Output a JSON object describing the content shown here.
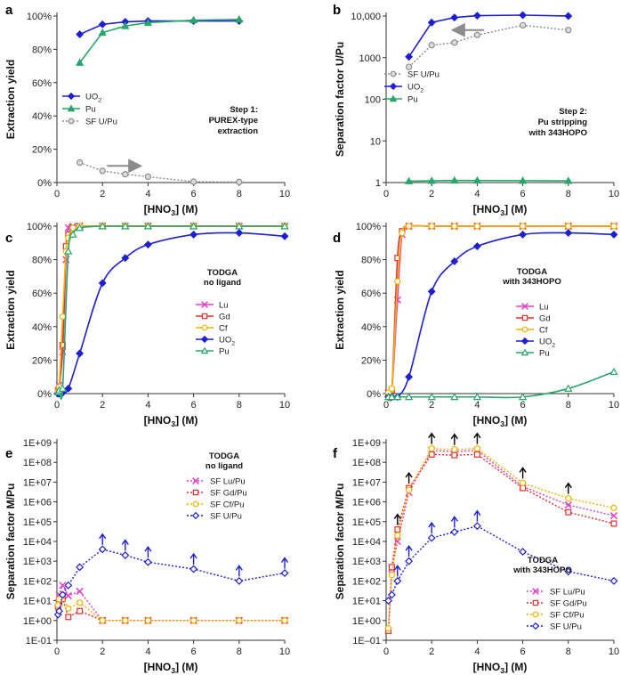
{
  "chart_data": [
    {
      "id": "a",
      "type": "line",
      "panel_label": "a",
      "yscale": "linear",
      "xlabel": [
        "[HNO",
        "3",
        "] (M)"
      ],
      "ylabel": "Extraction yield",
      "xlim": [
        0,
        10
      ],
      "xticks": [
        0,
        2,
        4,
        6,
        8,
        10
      ],
      "ylim": [
        0,
        100
      ],
      "yticks": [
        0,
        20,
        40,
        60,
        80,
        100
      ],
      "ytick_labels": [
        "0%",
        "20%",
        "40%",
        "60%",
        "80%",
        "100%"
      ],
      "legend_pos": "bottom-left",
      "annotation": [
        "Step 1:",
        "PUREX-type",
        "extraction"
      ],
      "arrow": {
        "from": [
          2.2,
          10
        ],
        "to": [
          3.6,
          10
        ],
        "label": "gray arrow"
      },
      "series": [
        {
          "name": [
            "UO",
            "2"
          ],
          "color": "#1f1fd1",
          "marker": "diamond",
          "style": "solid",
          "mfill": "color",
          "x": [
            1,
            2,
            3,
            4,
            6,
            8
          ],
          "y": [
            89,
            95,
            96.5,
            97,
            97,
            97
          ]
        },
        {
          "name": [
            "Pu"
          ],
          "color": "#2aa56a",
          "marker": "triangle",
          "style": "solid",
          "mfill": "color",
          "x": [
            1,
            2,
            3,
            4,
            6,
            8
          ],
          "y": [
            72,
            90,
            94,
            96,
            97.5,
            98
          ]
        },
        {
          "name": [
            "SF U/Pu"
          ],
          "color": "#8c8c8c",
          "marker": "circle",
          "style": "dotted",
          "mfill": "#dddddd",
          "x": [
            1,
            2,
            3,
            4,
            6,
            8
          ],
          "y": [
            12,
            7,
            5,
            3.5,
            0.5,
            0.3
          ]
        }
      ]
    },
    {
      "id": "b",
      "type": "line",
      "panel_label": "b",
      "yscale": "log",
      "xlabel": [
        "[HNO",
        "3",
        "] (M)"
      ],
      "ylabel": "Separation factor U/Pu",
      "xlim": [
        0,
        10
      ],
      "xticks": [
        0,
        2,
        4,
        6,
        8,
        10
      ],
      "ylim": [
        1,
        10000
      ],
      "yticks": [
        1,
        10,
        100,
        1000,
        10000
      ],
      "ytick_labels": [
        "1",
        "10",
        "100",
        "1000",
        "10,000"
      ],
      "legend_pos": "middle-left",
      "annotation": [
        "Step 2:",
        "Pu stripping",
        "with 343HOPO"
      ],
      "arrow": {
        "from": [
          4.3,
          4600
        ],
        "to": [
          3.0,
          4600
        ],
        "label": "gray arrow"
      },
      "series": [
        {
          "name": [
            "SF U/Pu"
          ],
          "color": "#8c8c8c",
          "marker": "circle",
          "style": "dotted",
          "mfill": "#dddddd",
          "x": [
            1,
            2,
            3,
            4,
            6,
            8
          ],
          "y": [
            600,
            2000,
            2300,
            3500,
            6000,
            4600
          ]
        },
        {
          "name": [
            "UO",
            "2"
          ],
          "color": "#1f1fd1",
          "marker": "diamond",
          "style": "solid",
          "mfill": "color",
          "x": [
            1,
            2,
            3,
            4,
            6,
            8
          ],
          "y": [
            1050,
            7000,
            9200,
            10200,
            10500,
            10000
          ]
        },
        {
          "name": [
            "Pu"
          ],
          "color": "#2aa56a",
          "marker": "triangle",
          "style": "solid",
          "mfill": "color",
          "x": [
            1,
            2,
            3,
            4,
            6,
            8
          ],
          "y": [
            1.08,
            1.1,
            1.12,
            1.12,
            1.11,
            1.1
          ]
        }
      ]
    },
    {
      "id": "c",
      "type": "line",
      "panel_label": "c",
      "yscale": "linear",
      "xlabel": [
        "[HNO",
        "3",
        "] (M)"
      ],
      "ylabel": "Extraction yield",
      "xlim": [
        0,
        10
      ],
      "xticks": [
        0,
        2,
        4,
        6,
        8,
        10
      ],
      "ylim": [
        0,
        100
      ],
      "yticks": [
        0,
        20,
        40,
        60,
        80,
        100
      ],
      "ytick_labels": [
        "0%",
        "20%",
        "40%",
        "60%",
        "80%",
        "100%"
      ],
      "legend_pos": "middle-right",
      "legend_title": [
        "TODGA",
        "no ligand"
      ],
      "series": [
        {
          "name": [
            "Lu"
          ],
          "color": "#e040c8",
          "marker": "x",
          "style": "solid",
          "mfill": "none",
          "x": [
            0.05,
            0.1,
            0.25,
            0.4,
            0.5,
            0.7,
            1,
            2,
            3,
            4,
            6,
            8,
            10
          ],
          "y": [
            2,
            5,
            25,
            80,
            99,
            100,
            100,
            100,
            100,
            100,
            100,
            100,
            100
          ]
        },
        {
          "name": [
            "Gd"
          ],
          "color": "#e03030",
          "marker": "square",
          "style": "solid",
          "mfill": "none",
          "x": [
            0.05,
            0.1,
            0.25,
            0.4,
            0.5,
            0.7,
            1,
            2,
            3,
            4,
            6,
            8,
            10
          ],
          "y": [
            1,
            3,
            29,
            88,
            95,
            99,
            100,
            100,
            100,
            100,
            100,
            100,
            100
          ]
        },
        {
          "name": [
            "Cf"
          ],
          "color": "#f0b400",
          "marker": "circle",
          "style": "solid",
          "mfill": "none",
          "x": [
            0.05,
            0.1,
            0.25,
            0.4,
            0.5,
            0.7,
            1,
            2,
            3,
            4,
            6,
            8,
            10
          ],
          "y": [
            1,
            4,
            46,
            85,
            93,
            99,
            100,
            100,
            100,
            100,
            100,
            100,
            100
          ]
        },
        {
          "name": [
            "UO",
            "2"
          ],
          "color": "#1f1fd1",
          "marker": "diamond",
          "style": "solid",
          "mfill": "color",
          "x": [
            0.05,
            0.1,
            0.25,
            0.5,
            1,
            2,
            3,
            4,
            6,
            8,
            10
          ],
          "y": [
            0,
            0,
            0.5,
            3,
            24,
            66,
            81,
            89,
            95,
            96,
            94
          ]
        },
        {
          "name": [
            "Pu"
          ],
          "color": "#2aa56a",
          "marker": "triangle",
          "style": "solid",
          "mfill": "none",
          "x": [
            0.05,
            0.1,
            0.25,
            0.5,
            0.7,
            1,
            2,
            3,
            4,
            6,
            8,
            10
          ],
          "y": [
            1,
            2,
            3,
            85,
            95,
            99,
            100,
            100,
            100,
            100,
            100,
            100
          ]
        }
      ]
    },
    {
      "id": "d",
      "type": "line",
      "panel_label": "d",
      "yscale": "linear",
      "xlabel": [
        "[HNO",
        "3",
        "] (M)"
      ],
      "ylabel": "Extraction yield",
      "xlim": [
        0,
        10
      ],
      "xticks": [
        0,
        2,
        4,
        6,
        8,
        10
      ],
      "ylim": [
        0,
        100
      ],
      "yticks": [
        0,
        20,
        40,
        60,
        80,
        100
      ],
      "ytick_labels": [
        "0%",
        "20%",
        "40%",
        "60%",
        "80%",
        "100%"
      ],
      "legend_pos": "middle-right",
      "legend_title": [
        "TODGA",
        "with 343HOPO"
      ],
      "series": [
        {
          "name": [
            "Lu"
          ],
          "color": "#e040c8",
          "marker": "x",
          "style": "solid",
          "mfill": "none",
          "x": [
            0.1,
            0.25,
            0.5,
            0.7,
            1,
            2,
            3,
            4,
            6,
            8,
            10
          ],
          "y": [
            0.5,
            2,
            56,
            95,
            100,
            100,
            100,
            100,
            100,
            100,
            100
          ]
        },
        {
          "name": [
            "Gd"
          ],
          "color": "#e03030",
          "marker": "square",
          "style": "solid",
          "mfill": "none",
          "x": [
            0.1,
            0.25,
            0.5,
            0.7,
            1,
            2,
            3,
            4,
            6,
            8,
            10
          ],
          "y": [
            0.5,
            2,
            81,
            97,
            100,
            100,
            100,
            100,
            100,
            100,
            100
          ]
        },
        {
          "name": [
            "Cf"
          ],
          "color": "#f0b400",
          "marker": "circle",
          "style": "solid",
          "mfill": "none",
          "x": [
            0.1,
            0.25,
            0.5,
            0.7,
            1,
            2,
            3,
            4,
            6,
            8,
            10
          ],
          "y": [
            0.5,
            3,
            67,
            96,
            100,
            100,
            100,
            100,
            100,
            100,
            100
          ]
        },
        {
          "name": [
            "UO",
            "2"
          ],
          "color": "#1f1fd1",
          "marker": "diamond",
          "style": "solid",
          "mfill": "color",
          "x": [
            0.1,
            0.25,
            0.5,
            1,
            2,
            3,
            4,
            6,
            8,
            10
          ],
          "y": [
            -2,
            -2,
            -2,
            10,
            61,
            79,
            88,
            95,
            96,
            95
          ]
        },
        {
          "name": [
            "Pu"
          ],
          "color": "#2aa56a",
          "marker": "triangle",
          "style": "solid",
          "mfill": "none",
          "x": [
            0.1,
            0.25,
            0.5,
            1,
            2,
            3,
            4,
            6,
            8,
            10
          ],
          "y": [
            -2,
            -2,
            -2,
            -2,
            -2,
            -2,
            -2,
            -2,
            3,
            13
          ]
        }
      ]
    },
    {
      "id": "e",
      "type": "line",
      "panel_label": "e",
      "yscale": "log",
      "xlabel": [
        "[HNO",
        "3",
        "] (M)"
      ],
      "ylabel": "Separation factor M/Pu",
      "xlim": [
        0,
        10
      ],
      "xticks": [
        0,
        2,
        4,
        6,
        8,
        10
      ],
      "ylim": [
        0.1,
        1000000000
      ],
      "yticks": [
        0.1,
        1,
        10,
        100,
        1000,
        10000,
        100000,
        1000000,
        10000000,
        100000000,
        1000000000
      ],
      "ytick_labels": [
        "1E-01",
        "1E+00",
        "1E+01",
        "1E+02",
        "1E+03",
        "1E+04",
        "1E+05",
        "1E+06",
        "1E+07",
        "1E+08",
        "1E+09"
      ],
      "legend_pos": "top-right",
      "legend_title": [
        "TODGA",
        "no ligand"
      ],
      "lower_bound_arrows": {
        "series": 3,
        "points": [
          2,
          3,
          4,
          6,
          8,
          10
        ]
      },
      "series": [
        {
          "name": [
            "SF Lu/Pu"
          ],
          "color": "#e040c8",
          "marker": "x",
          "style": "dotted",
          "mfill": "none",
          "x": [
            0.05,
            0.1,
            0.25,
            0.5,
            1,
            2,
            3,
            4,
            6,
            8,
            10
          ],
          "y": [
            8,
            20,
            60,
            18,
            30,
            1,
            1,
            1,
            1,
            1,
            1
          ]
        },
        {
          "name": [
            "SF Gd/Pu"
          ],
          "color": "#e03030",
          "marker": "square",
          "style": "dotted",
          "mfill": "none",
          "x": [
            0.05,
            0.1,
            0.25,
            0.5,
            1,
            2,
            3,
            4,
            6,
            8,
            10
          ],
          "y": [
            5,
            8,
            12,
            1.5,
            3,
            1,
            1,
            1,
            1,
            1,
            1
          ]
        },
        {
          "name": [
            "SF Cf/Pu"
          ],
          "color": "#f0b400",
          "marker": "circle",
          "style": "dotted",
          "mfill": "none",
          "x": [
            0.05,
            0.1,
            0.25,
            0.5,
            1,
            2,
            3,
            4,
            6,
            8,
            10
          ],
          "y": [
            6,
            12,
            20,
            4,
            8,
            1,
            1,
            1,
            1,
            1,
            1
          ]
        },
        {
          "name": [
            "SF U/Pu"
          ],
          "color": "#1f1fd1",
          "marker": "diamond",
          "style": "dotted",
          "mfill": "none",
          "x": [
            0.05,
            0.1,
            0.25,
            0.5,
            1,
            2,
            3,
            4,
            6,
            8,
            10
          ],
          "y": [
            2,
            3,
            20,
            60,
            500,
            4000,
            2000,
            900,
            400,
            100,
            250
          ]
        }
      ]
    },
    {
      "id": "f",
      "type": "line",
      "panel_label": "f",
      "yscale": "log",
      "xlabel": [
        "[HNO",
        "3",
        "] (M)"
      ],
      "ylabel": "Separation factor M/Pu",
      "xlim": [
        0,
        10
      ],
      "xticks": [
        0,
        2,
        4,
        6,
        8,
        10
      ],
      "ylim": [
        0.1,
        1000000000
      ],
      "yticks": [
        0.1,
        1,
        10,
        100,
        1000,
        10000,
        100000,
        1000000,
        10000000,
        100000000,
        1000000000
      ],
      "ytick_labels": [
        "1E–01",
        "1E+00",
        "1E+01",
        "1E+02",
        "1E+03",
        "1E+04",
        "1E+05",
        "1E+06",
        "1E+07",
        "1E+08",
        "1E+09"
      ],
      "legend_pos": "bottom-right",
      "legend_title": [
        "TODGA",
        "with 343HOPO"
      ],
      "lower_bound_arrows_black": {
        "x": [
          0.5,
          1,
          2,
          3,
          4,
          6,
          8
        ]
      },
      "lower_bound_arrows": {
        "series": 3,
        "points": [
          0.5,
          1,
          2,
          3,
          4
        ]
      },
      "series": [
        {
          "name": [
            "SF Lu/Pu"
          ],
          "color": "#e040c8",
          "marker": "x",
          "style": "dotted",
          "mfill": "none",
          "x": [
            0.1,
            0.25,
            0.5,
            1,
            2,
            3,
            4,
            6,
            8,
            10
          ],
          "y": [
            0.3,
            400,
            10000,
            3000000,
            400000000,
            350000000,
            400000000,
            6000000,
            700000,
            200000
          ]
        },
        {
          "name": [
            "SF Gd/Pu"
          ],
          "color": "#e03030",
          "marker": "square",
          "style": "dotted",
          "mfill": "none",
          "x": [
            0.1,
            0.25,
            0.5,
            1,
            2,
            3,
            4,
            6,
            8,
            10
          ],
          "y": [
            0.3,
            500,
            40000,
            5000000,
            250000000,
            230000000,
            250000000,
            5000000,
            300000,
            80000
          ]
        },
        {
          "name": [
            "SF Cf/Pu"
          ],
          "color": "#f0b400",
          "marker": "circle",
          "style": "dotted",
          "mfill": "none",
          "x": [
            0.1,
            0.25,
            0.5,
            1,
            2,
            3,
            4,
            6,
            8,
            10
          ],
          "y": [
            0.4,
            200,
            20000,
            4000000,
            500000000,
            450000000,
            500000000,
            9000000,
            1500000,
            500000
          ]
        },
        {
          "name": [
            "SF U/Pu"
          ],
          "color": "#1f1fd1",
          "marker": "diamond",
          "style": "dotted",
          "mfill": "none",
          "x": [
            0.1,
            0.25,
            0.5,
            1,
            2,
            3,
            4,
            6,
            8,
            10
          ],
          "y": [
            10,
            20,
            100,
            1000,
            15000,
            30000,
            60000,
            3000,
            300,
            100
          ]
        }
      ]
    }
  ]
}
